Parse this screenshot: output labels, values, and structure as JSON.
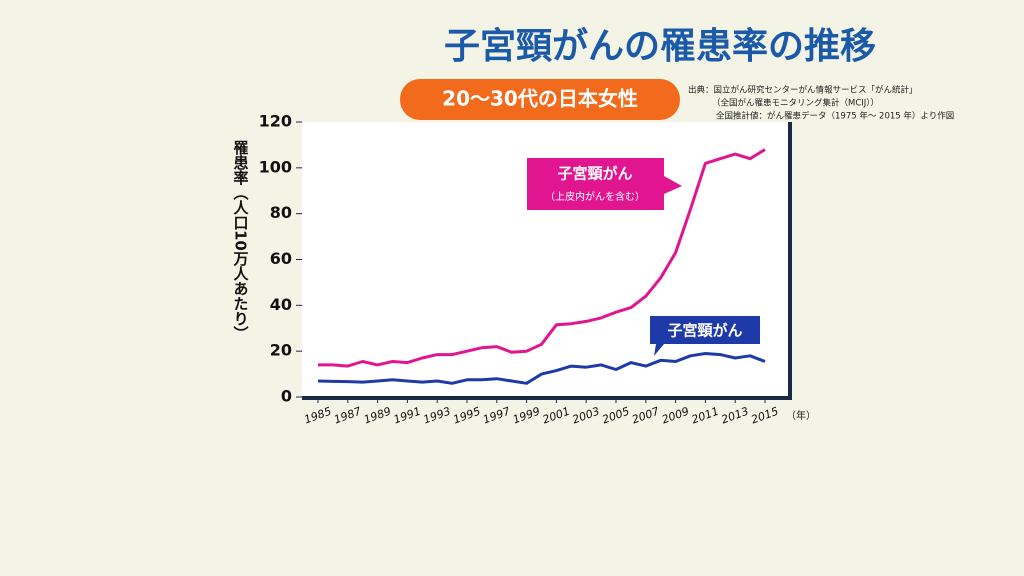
{
  "chart_data": {
    "type": "line",
    "title": "子宮頸がんの罹患率の推移",
    "subtitle": "20〜30代の日本女性",
    "source": [
      "出典：国立がん研究センターがん情報サービス「がん統計」",
      "（全国がん罹患モニタリング集計（MCIJ））",
      "全国推計値：がん罹患データ（1975 年〜 2015 年）より作図"
    ],
    "y_label": "罹患率（人口10万人あたり）",
    "x_unit": "（年）",
    "x": [
      1985,
      1986,
      1987,
      1988,
      1989,
      1990,
      1991,
      1992,
      1993,
      1994,
      1995,
      1996,
      1997,
      1998,
      1999,
      2000,
      2001,
      2002,
      2003,
      2004,
      2005,
      2006,
      2007,
      2008,
      2009,
      2010,
      2011,
      2012,
      2013,
      2014,
      2015
    ],
    "series": [
      {
        "name": "子宮頸がん",
        "note": "（上皮内がんを含む）",
        "color": "#e0158f",
        "values": [
          14,
          14,
          13.5,
          15.5,
          14,
          15.5,
          15,
          17,
          18.5,
          18.5,
          20,
          21.5,
          22,
          19.5,
          20,
          23,
          31.5,
          32,
          33,
          34.5,
          37,
          39,
          44,
          52,
          63,
          82,
          102,
          104,
          106,
          104,
          108
        ]
      },
      {
        "name": "子宮頸がん",
        "color": "#1e3aa8",
        "values": [
          7,
          6.8,
          6.7,
          6.5,
          7,
          7.5,
          7,
          6.5,
          7,
          6,
          7.5,
          7.5,
          8,
          7,
          6,
          10,
          11.5,
          13.5,
          13,
          14,
          12,
          15,
          13.5,
          16,
          15.5,
          18,
          19,
          18.5,
          17,
          18,
          15.5
        ]
      }
    ],
    "xlim": [
      1985,
      2015
    ],
    "xticks": [
      1985,
      1987,
      1989,
      1991,
      1993,
      1995,
      1997,
      1999,
      2001,
      2003,
      2005,
      2007,
      2009,
      2011,
      2013,
      2015
    ],
    "ylim": [
      0,
      120
    ],
    "yticks": [
      0,
      20,
      40,
      60,
      80,
      100,
      120
    ]
  }
}
